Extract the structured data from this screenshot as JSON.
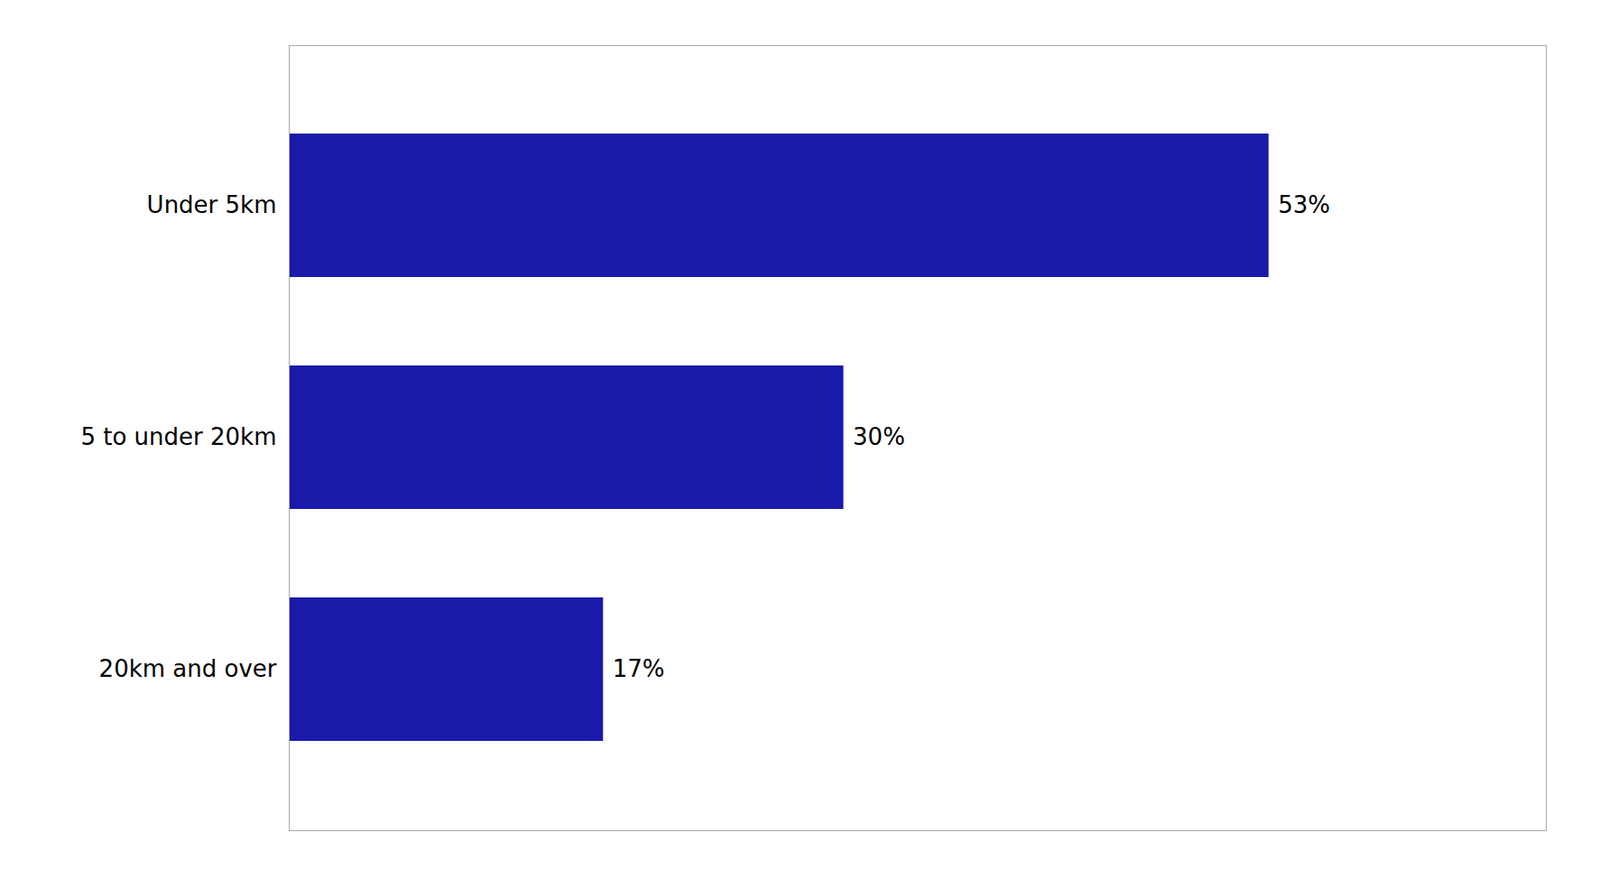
{
  "chart_data": {
    "type": "bar",
    "orientation": "horizontal",
    "categories": [
      "20km and over",
      "5 to under 20km",
      "Under 5km"
    ],
    "values": [
      17,
      30,
      53
    ],
    "value_labels": [
      "17%",
      "30%",
      "53%"
    ],
    "color": "#1a1aaa",
    "xlim": [
      0,
      68
    ],
    "xticks": [],
    "tick_labels": "y",
    "data_labels": true,
    "grid": false
  }
}
